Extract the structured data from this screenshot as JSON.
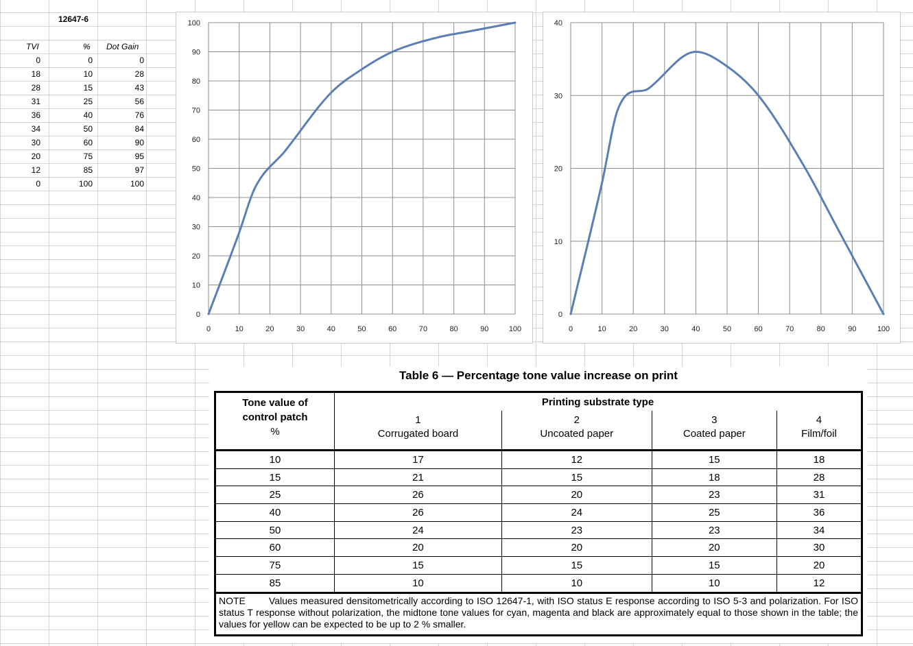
{
  "sheet": {
    "title": "12647-6",
    "headers": {
      "tvi": "TVI",
      "pct": "%",
      "dot_gain": "Dot Gain"
    },
    "rows": [
      {
        "tvi": "0",
        "pct": "0",
        "dot_gain": "0"
      },
      {
        "tvi": "18",
        "pct": "10",
        "dot_gain": "28"
      },
      {
        "tvi": "28",
        "pct": "15",
        "dot_gain": "43"
      },
      {
        "tvi": "31",
        "pct": "25",
        "dot_gain": "56"
      },
      {
        "tvi": "36",
        "pct": "40",
        "dot_gain": "76"
      },
      {
        "tvi": "34",
        "pct": "50",
        "dot_gain": "84"
      },
      {
        "tvi": "30",
        "pct": "60",
        "dot_gain": "90"
      },
      {
        "tvi": "20",
        "pct": "75",
        "dot_gain": "95"
      },
      {
        "tvi": "12",
        "pct": "85",
        "dot_gain": "97"
      },
      {
        "tvi": "0",
        "pct": "100",
        "dot_gain": "100"
      }
    ]
  },
  "chart_data": [
    {
      "type": "line",
      "title": "",
      "xlabel": "",
      "ylabel": "",
      "xlim": [
        0,
        100
      ],
      "ylim": [
        0,
        100
      ],
      "xticks": [
        "0",
        "10",
        "20",
        "30",
        "40",
        "50",
        "60",
        "70",
        "80",
        "90",
        "100"
      ],
      "yticks": [
        "0",
        "10",
        "20",
        "30",
        "40",
        "50",
        "60",
        "70",
        "80",
        "90",
        "100"
      ],
      "grid": true,
      "smooth": true,
      "line_color": "#5b7eb4",
      "series": [
        {
          "x": [
            0,
            10,
            15,
            25,
            40,
            50,
            60,
            75,
            85,
            100
          ],
          "y": [
            0,
            28,
            43,
            56,
            76,
            84,
            90,
            95,
            97,
            100
          ]
        }
      ]
    },
    {
      "type": "line",
      "title": "",
      "xlabel": "",
      "ylabel": "",
      "xlim": [
        0,
        100
      ],
      "ylim": [
        0,
        40
      ],
      "xticks": [
        "0",
        "10",
        "20",
        "30",
        "40",
        "50",
        "60",
        "70",
        "80",
        "90",
        "100"
      ],
      "yticks": [
        "0",
        "10",
        "20",
        "30",
        "40"
      ],
      "grid": true,
      "smooth": true,
      "line_color": "#5b7eb4",
      "series": [
        {
          "x": [
            0,
            10,
            15,
            25,
            40,
            50,
            60,
            75,
            85,
            100
          ],
          "y": [
            0,
            18,
            28,
            31,
            36,
            34,
            30,
            20,
            12,
            0
          ]
        }
      ]
    }
  ],
  "iso_table": {
    "title": "Table 6 — Percentage tone value increase on print",
    "tone_header": [
      "Tone value of",
      "control patch",
      "%"
    ],
    "substrate_header": "Printing substrate type",
    "columns": [
      {
        "num": "1",
        "name": "Corrugated board"
      },
      {
        "num": "2",
        "name": "Uncoated paper"
      },
      {
        "num": "3",
        "name": "Coated paper"
      },
      {
        "num": "4",
        "name": "Film/foil"
      }
    ],
    "rows": [
      [
        "10",
        "17",
        "12",
        "15",
        "18"
      ],
      [
        "15",
        "21",
        "15",
        "18",
        "28"
      ],
      [
        "25",
        "26",
        "20",
        "23",
        "31"
      ],
      [
        "40",
        "26",
        "24",
        "25",
        "36"
      ],
      [
        "50",
        "24",
        "23",
        "23",
        "34"
      ],
      [
        "60",
        "20",
        "20",
        "20",
        "30"
      ],
      [
        "75",
        "15",
        "15",
        "15",
        "20"
      ],
      [
        "85",
        "10",
        "10",
        "10",
        "12"
      ]
    ],
    "note_label": "NOTE",
    "note_text": "Values measured densitometrically according to ISO 12647-1, with ISO status E response according to ISO 5-3 and polarization. For ISO status T response without polarization, the midtone tone values for cyan, magenta and black are approximately equal to those shown in the table; the values for yellow can be expected to be up to 2 % smaller."
  }
}
